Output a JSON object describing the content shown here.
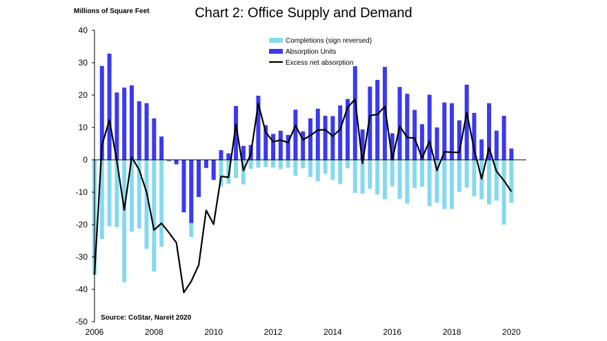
{
  "chart_data": {
    "type": "bar",
    "title": "Chart 2: Office Supply and Demand",
    "ylabel": "Millions of Square Feet",
    "xlabel": "",
    "source": "Source: CoStar, Nareit 2020",
    "ylim": [
      -50,
      40
    ],
    "yticks": [
      40,
      30,
      20,
      10,
      0,
      -10,
      -20,
      -30,
      -40,
      -50
    ],
    "xlim": [
      2006,
      2020.5
    ],
    "xticks": [
      2006,
      2008,
      2010,
      2012,
      2014,
      2016,
      2018,
      2020
    ],
    "legend_position": "top-center",
    "colors": {
      "completions": "#85d9ef",
      "absorption": "#3a3af0",
      "excess": "#000000"
    },
    "x": [
      2006.0,
      2006.25,
      2006.5,
      2006.75,
      2007.0,
      2007.25,
      2007.5,
      2007.75,
      2008.0,
      2008.25,
      2008.5,
      2008.75,
      2009.0,
      2009.25,
      2009.5,
      2009.75,
      2010.0,
      2010.25,
      2010.5,
      2010.75,
      2011.0,
      2011.25,
      2011.5,
      2011.75,
      2012.0,
      2012.25,
      2012.5,
      2012.75,
      2013.0,
      2013.25,
      2013.5,
      2013.75,
      2014.0,
      2014.25,
      2014.5,
      2014.75,
      2015.0,
      2015.25,
      2015.5,
      2015.75,
      2016.0,
      2016.25,
      2016.5,
      2016.75,
      2017.0,
      2017.25,
      2017.5,
      2017.75,
      2018.0,
      2018.25,
      2018.5,
      2018.75,
      2019.0,
      2019.25,
      2019.5,
      2019.75,
      2020.0
    ],
    "series": [
      {
        "name": "Completions (sign reversed)",
        "type": "bar",
        "values": [
          -35.5,
          -24.5,
          -20.5,
          -20.8,
          -37.8,
          -22.2,
          -21.2,
          -27.5,
          -34.5,
          -26.8,
          -0.5,
          -0.8,
          -16.2,
          -23.8,
          -11.5,
          -2.5,
          -6.2,
          -8.2,
          -7.4,
          -5.6,
          -7.6,
          -2.8,
          -2.4,
          -2.2,
          -2.4,
          -2.9,
          -2.4,
          -4.9,
          -2.6,
          -5.3,
          -6.6,
          -4.3,
          -6.2,
          -7.4,
          -2.6,
          -10.2,
          -10.5,
          -8.9,
          -10.7,
          -12.2,
          -8.2,
          -12.1,
          -13.5,
          -8.7,
          -8.3,
          -14.3,
          -13.3,
          -15.2,
          -15.2,
          -9.9,
          -8.6,
          -11.3,
          -12.2,
          -13.8,
          -12.6,
          -20.0,
          -13.3
        ]
      },
      {
        "name": "Absorption Units",
        "type": "bar",
        "values": [
          0.0,
          29.0,
          32.8,
          20.8,
          22.3,
          23.0,
          18.1,
          17.5,
          12.8,
          7.2,
          -0.3,
          -1.4,
          -16.2,
          -19.5,
          -11.5,
          -2.5,
          -6.2,
          3.0,
          2.0,
          16.6,
          4.3,
          4.6,
          19.8,
          10.7,
          8.0,
          9.0,
          7.7,
          15.5,
          8.8,
          12.8,
          15.8,
          13.6,
          13.5,
          16.8,
          18.8,
          28.9,
          9.4,
          22.6,
          24.7,
          28.7,
          8.2,
          22.5,
          20.4,
          15.4,
          11.0,
          20.1,
          10.0,
          17.7,
          17.5,
          12.2,
          23.2,
          14.5,
          6.3,
          17.5,
          9.0,
          13.6,
          3.5
        ]
      },
      {
        "name": "Excess net absorption",
        "type": "line",
        "values": [
          -35.5,
          4.5,
          12.3,
          -0.3,
          -15.5,
          0.8,
          -3.1,
          -10.0,
          -21.7,
          -19.6,
          -22.5,
          -25.6,
          -41.0,
          -37.5,
          -32.5,
          -15.6,
          -19.9,
          -5.1,
          -5.4,
          11.0,
          -3.3,
          1.8,
          17.4,
          8.5,
          5.6,
          6.1,
          5.3,
          10.6,
          6.2,
          7.5,
          9.2,
          9.3,
          7.3,
          9.4,
          16.2,
          18.7,
          -1.1,
          13.7,
          14.0,
          16.5,
          0.0,
          10.4,
          6.9,
          6.7,
          0.5,
          5.8,
          -3.3,
          2.5,
          2.3,
          2.3,
          14.6,
          3.2,
          -5.9,
          3.7,
          -3.6,
          -6.4,
          -9.8
        ]
      }
    ]
  }
}
